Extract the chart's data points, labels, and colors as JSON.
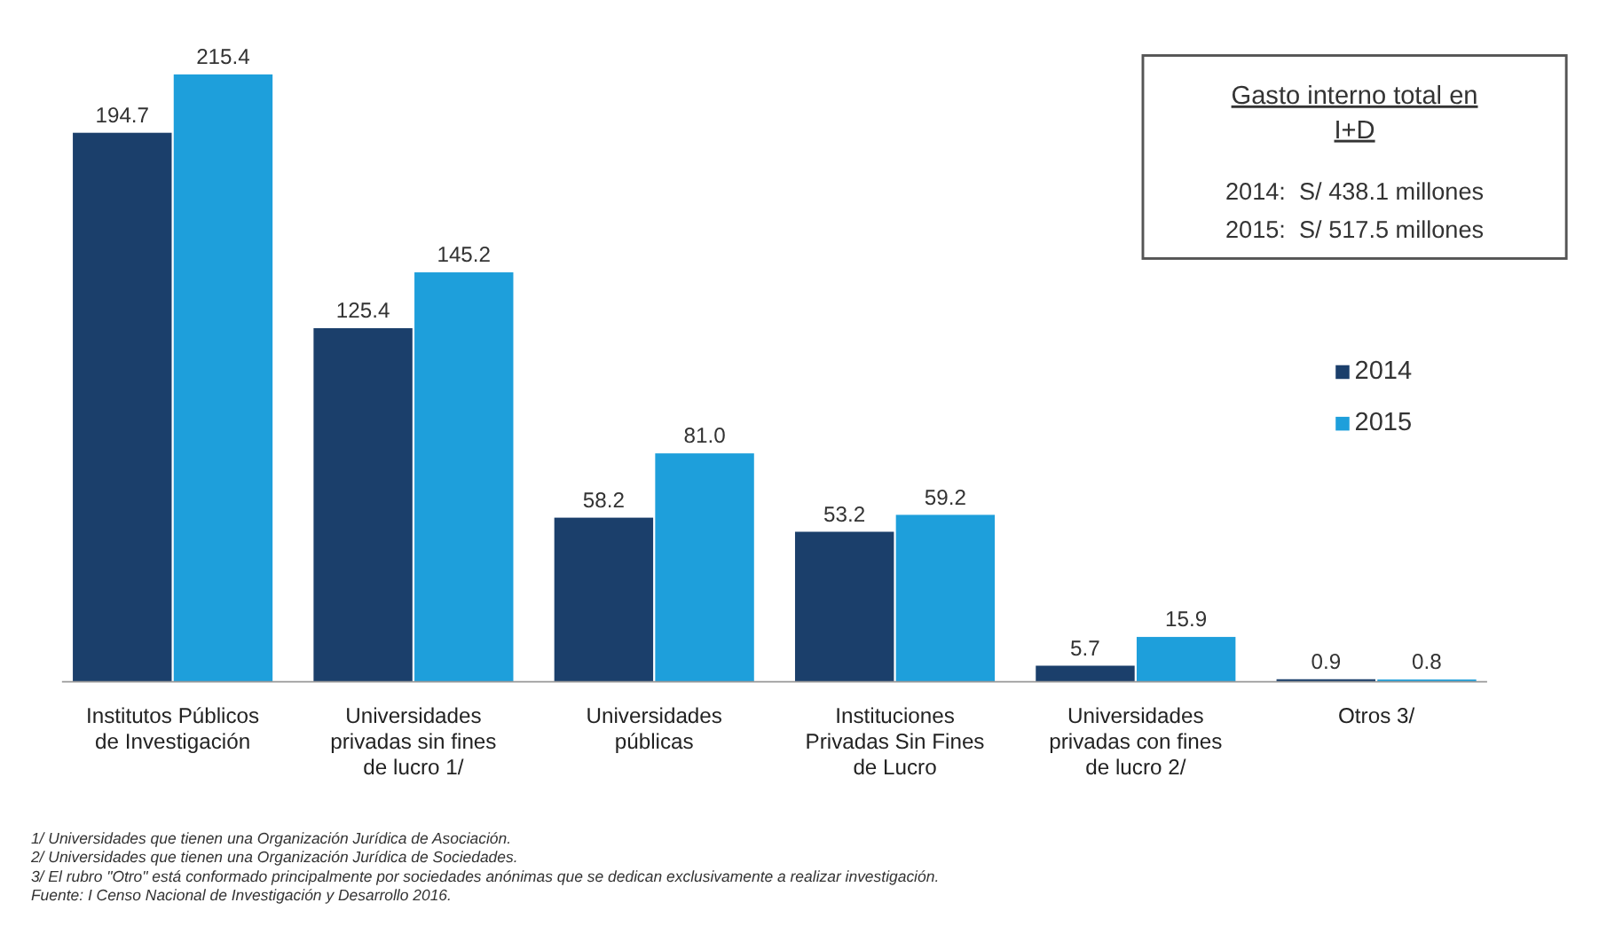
{
  "chart_data": {
    "type": "bar",
    "categories": [
      "Institutos Públicos de Investigación",
      "Universidades privadas sin fines de lucro 1/",
      "Universidades públicas",
      "Instituciones Privadas Sin Fines de Lucro",
      "Universidades privadas con fines de lucro 2/",
      "Otros 3/"
    ],
    "series": [
      {
        "name": "2014",
        "color": "#1b3f6b",
        "values": [
          194.7,
          125.4,
          58.2,
          53.2,
          5.7,
          0.9
        ],
        "value_labels": [
          "194.7",
          "125.4",
          "58.2",
          "53.2",
          "5.7",
          "0.9"
        ]
      },
      {
        "name": "2015",
        "color": "#1e9fdb",
        "values": [
          215.4,
          145.2,
          81.0,
          59.2,
          15.9,
          0.8
        ],
        "value_labels": [
          "215.4",
          "145.2",
          "81.0",
          "59.2",
          "15.9",
          "0.8"
        ]
      }
    ],
    "legend": "right",
    "grid": false,
    "annotations": [
      "Gasto interno total en I+D",
      "2014:  S/ 438.1 millones",
      "2015:  S/ 517.5 millones",
      "1/ Universidades que tienen una Organización Jurídica de Asociación.",
      "2/ Universidades que tienen una Organización Jurídica de Sociedades.",
      "3/ El rubro \"Otro\" está conformado principalmente por sociedades anónimas que se dedican exclusivamente a realizar investigación.",
      "Fuente: I Censo Nacional de Investigación y Desarrollo 2016."
    ]
  }
}
